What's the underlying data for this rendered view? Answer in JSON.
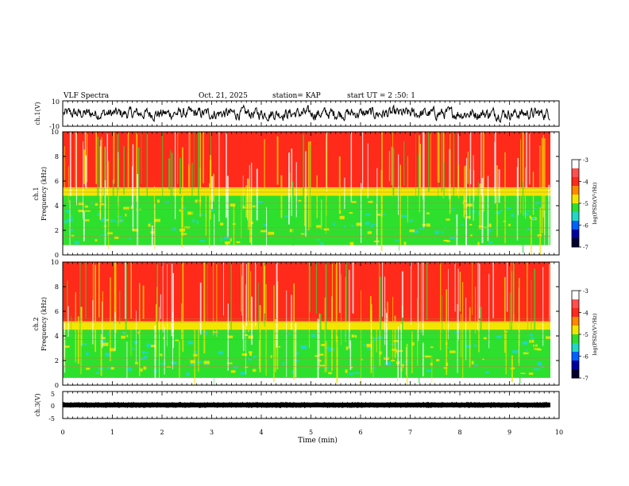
{
  "header": {
    "title": "VLF Spectra",
    "date": "Oct. 21, 2025",
    "station": "station= KAP",
    "start": "start UT =  2 :50: 1"
  },
  "colors": {
    "frame": "#000000",
    "trace": "#000000",
    "spec_red": "#ff2a1a",
    "spec_yellow": "#f2e600",
    "spec_green": "#2ee02e",
    "spec_cyan": "#1fd8c8",
    "spec_white": "#ffffff"
  },
  "chart_data": [
    {
      "id": "ch1-voltage",
      "type": "line",
      "ylabel": "ch.1(V)",
      "ylim": [
        -10,
        10
      ],
      "y_ticks": [
        "10",
        "-10"
      ],
      "xlim": [
        0,
        9.85
      ],
      "description_of_values": "noisy waveform, values roughly between -5 and 5 V"
    },
    {
      "id": "ch1-spectrogram",
      "type": "heatmap",
      "ylabel_top": "ch.1",
      "ylabel": "Frequency (kHz)",
      "ylim": [
        0,
        10
      ],
      "y_ticks": [
        "0",
        "2",
        "4",
        "6",
        "8",
        "10"
      ],
      "colorbar": {
        "label": "log(PSD)(V²/Hz)",
        "ticks": [
          "-3",
          "-4",
          "-5",
          "-6",
          "-7"
        ],
        "range": [
          -7,
          -3
        ]
      },
      "bands": [
        {
          "from_khz": 0,
          "to_khz": 0.8,
          "level": "white"
        },
        {
          "from_khz": 0.8,
          "to_khz": 2.0,
          "level": "green"
        },
        {
          "from_khz": 2.0,
          "to_khz": 4.8,
          "level": "green-cyan"
        },
        {
          "from_khz": 4.8,
          "to_khz": 5.5,
          "level": "yellow"
        },
        {
          "from_khz": 5.5,
          "to_khz": 10,
          "level": "red"
        }
      ]
    },
    {
      "id": "ch2-spectrogram",
      "type": "heatmap",
      "ylabel_top": "ch.2",
      "ylabel": "Frequency (kHz)",
      "ylim": [
        0,
        10
      ],
      "y_ticks": [
        "0",
        "2",
        "4",
        "6",
        "8",
        "10"
      ],
      "colorbar": {
        "label": "log(PSD)(V²/Hz)",
        "ticks": [
          "-3",
          "-4",
          "-5",
          "-6",
          "-7"
        ],
        "range": [
          -7,
          -3
        ]
      },
      "bands": [
        {
          "from_khz": 0,
          "to_khz": 0.6,
          "level": "white"
        },
        {
          "from_khz": 0.6,
          "to_khz": 2.0,
          "level": "green"
        },
        {
          "from_khz": 2.0,
          "to_khz": 4.5,
          "level": "green-cyan"
        },
        {
          "from_khz": 4.5,
          "to_khz": 5.2,
          "level": "yellow"
        },
        {
          "from_khz": 5.2,
          "to_khz": 10,
          "level": "red"
        }
      ]
    },
    {
      "id": "ch3-voltage",
      "type": "line",
      "ylabel": "ch.3(V)",
      "ylim": [
        -5,
        5
      ],
      "y_ticks": [
        "5",
        "0",
        "-5"
      ],
      "xlim": [
        0,
        9.85
      ],
      "description_of_values": "flat dense trace near -0.2 V"
    }
  ],
  "x_axis": {
    "label": "Time (min)",
    "range": [
      0,
      10
    ],
    "ticks": [
      "0",
      "1",
      "2",
      "3",
      "4",
      "5",
      "6",
      "7",
      "8",
      "9",
      "10"
    ]
  }
}
